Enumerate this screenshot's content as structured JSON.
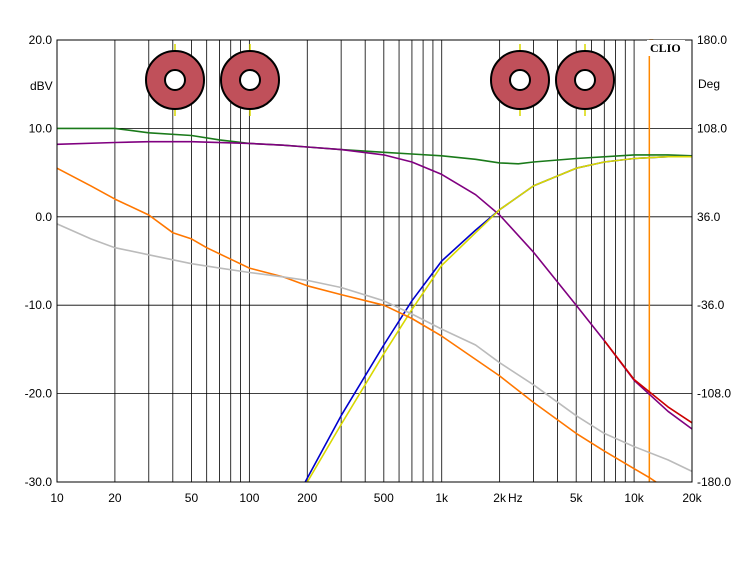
{
  "chart_data": {
    "type": "line",
    "brand": "CLIO",
    "x_scale": "log",
    "xlim": [
      10,
      20000
    ],
    "ylim_left": [
      -30,
      20
    ],
    "ylim_right": [
      -180,
      180
    ],
    "left_unit": "dBV",
    "right_unit": "Deg",
    "x_unit": "Hz",
    "grid": true,
    "x_ticks": [
      {
        "value": 10,
        "label": "10"
      },
      {
        "value": 20,
        "label": "20"
      },
      {
        "value": 50,
        "label": "50"
      },
      {
        "value": 100,
        "label": "100"
      },
      {
        "value": 200,
        "label": "200"
      },
      {
        "value": 500,
        "label": "500"
      },
      {
        "value": 1000,
        "label": "1k"
      },
      {
        "value": 2000,
        "label": "2k"
      },
      {
        "value": 5000,
        "label": "5k"
      },
      {
        "value": 10000,
        "label": "10k"
      },
      {
        "value": 20000,
        "label": "20k"
      }
    ],
    "y_ticks_left": [
      {
        "value": 20,
        "label": "20.0"
      },
      {
        "value": 10,
        "label": "10.0"
      },
      {
        "value": 0,
        "label": "0.0"
      },
      {
        "value": -10,
        "label": "-10.0"
      },
      {
        "value": -20,
        "label": "-20.0"
      },
      {
        "value": -30,
        "label": "-30.0"
      }
    ],
    "y_ticks_right": [
      {
        "value": 180,
        "label": "180.0"
      },
      {
        "value": 108,
        "label": "108.0"
      },
      {
        "value": 36,
        "label": "36.0"
      },
      {
        "value": -36,
        "label": "-36.0"
      },
      {
        "value": -108,
        "label": "-108.0"
      },
      {
        "value": -180,
        "label": "-180.0"
      }
    ],
    "cursor_hz": 12000,
    "series": [
      {
        "color": "#1a7a1a",
        "points": [
          [
            10,
            10
          ],
          [
            20,
            10
          ],
          [
            30,
            9.5
          ],
          [
            50,
            9.2
          ],
          [
            70,
            8.7
          ],
          [
            100,
            8.3
          ],
          [
            150,
            8.1
          ],
          [
            200,
            7.9
          ],
          [
            300,
            7.6
          ],
          [
            500,
            7.3
          ],
          [
            700,
            7.1
          ],
          [
            1000,
            6.9
          ],
          [
            1500,
            6.5
          ],
          [
            2000,
            6.1
          ],
          [
            2500,
            6.0
          ],
          [
            3000,
            6.2
          ],
          [
            5000,
            6.6
          ],
          [
            10000,
            7.0
          ],
          [
            15000,
            7.0
          ],
          [
            20000,
            6.9
          ]
        ]
      },
      {
        "color": "#800080",
        "points": [
          [
            10,
            8.2
          ],
          [
            20,
            8.4
          ],
          [
            30,
            8.5
          ],
          [
            50,
            8.5
          ],
          [
            100,
            8.3
          ],
          [
            150,
            8.1
          ],
          [
            200,
            7.9
          ],
          [
            300,
            7.6
          ],
          [
            500,
            7.0
          ],
          [
            700,
            6.2
          ],
          [
            1000,
            4.8
          ],
          [
            1500,
            2.5
          ],
          [
            2000,
            0.2
          ],
          [
            3000,
            -4.0
          ],
          [
            5000,
            -10.0
          ],
          [
            7000,
            -14.0
          ],
          [
            10000,
            -18.5
          ],
          [
            15000,
            -22.0
          ],
          [
            20000,
            -24.0
          ]
        ]
      },
      {
        "color": "#cc0000",
        "points": [
          [
            7000,
            -14.0
          ],
          [
            10000,
            -18.4
          ],
          [
            15000,
            -21.5
          ],
          [
            20000,
            -23.3
          ]
        ]
      },
      {
        "color": "#0000cc",
        "points": [
          [
            195,
            -30
          ],
          [
            300,
            -22.5
          ],
          [
            500,
            -14.5
          ],
          [
            700,
            -9.5
          ],
          [
            1000,
            -5.0
          ],
          [
            1500,
            -1.5
          ],
          [
            2000,
            0.8
          ],
          [
            3000,
            3.5
          ],
          [
            5000,
            5.5
          ],
          [
            7000,
            6.2
          ],
          [
            10000,
            6.6
          ],
          [
            15000,
            6.8
          ],
          [
            20000,
            6.8
          ]
        ]
      },
      {
        "color": "#d8d800",
        "points": [
          [
            200,
            -30
          ],
          [
            300,
            -23.5
          ],
          [
            500,
            -15.5
          ],
          [
            700,
            -10.5
          ],
          [
            1000,
            -5.5
          ],
          [
            1500,
            -1.8
          ],
          [
            2000,
            0.8
          ],
          [
            3000,
            3.5
          ],
          [
            5000,
            5.5
          ],
          [
            7000,
            6.2
          ],
          [
            10000,
            6.6
          ],
          [
            15000,
            6.8
          ],
          [
            20000,
            6.8
          ]
        ]
      },
      {
        "color": "#ff7700",
        "points": [
          [
            10,
            5.5
          ],
          [
            15,
            3.5
          ],
          [
            20,
            2.0
          ],
          [
            30,
            0.2
          ],
          [
            40,
            -1.8
          ],
          [
            50,
            -2.5
          ],
          [
            60,
            -3.5
          ],
          [
            80,
            -4.8
          ],
          [
            100,
            -5.8
          ],
          [
            150,
            -6.8
          ],
          [
            200,
            -7.8
          ],
          [
            300,
            -8.8
          ],
          [
            500,
            -10.0
          ],
          [
            700,
            -11.5
          ],
          [
            1000,
            -13.5
          ],
          [
            2000,
            -18.0
          ],
          [
            3000,
            -21.0
          ],
          [
            5000,
            -24.5
          ],
          [
            7000,
            -26.5
          ],
          [
            10000,
            -28.5
          ],
          [
            12000,
            -29.5
          ],
          [
            13000,
            -30
          ]
        ]
      },
      {
        "color": "#bbbbbb",
        "points": [
          [
            10,
            -0.8
          ],
          [
            15,
            -2.5
          ],
          [
            20,
            -3.5
          ],
          [
            30,
            -4.3
          ],
          [
            50,
            -5.3
          ],
          [
            70,
            -5.8
          ],
          [
            100,
            -6.3
          ],
          [
            150,
            -6.8
          ],
          [
            200,
            -7.2
          ],
          [
            300,
            -8.0
          ],
          [
            500,
            -9.5
          ],
          [
            700,
            -11.0
          ],
          [
            1000,
            -12.7
          ],
          [
            1500,
            -14.5
          ],
          [
            2000,
            -16.5
          ],
          [
            3000,
            -19.0
          ],
          [
            5000,
            -22.5
          ],
          [
            7000,
            -24.5
          ],
          [
            10000,
            -26.0
          ],
          [
            15000,
            -27.5
          ],
          [
            20000,
            -28.8
          ]
        ]
      }
    ]
  }
}
